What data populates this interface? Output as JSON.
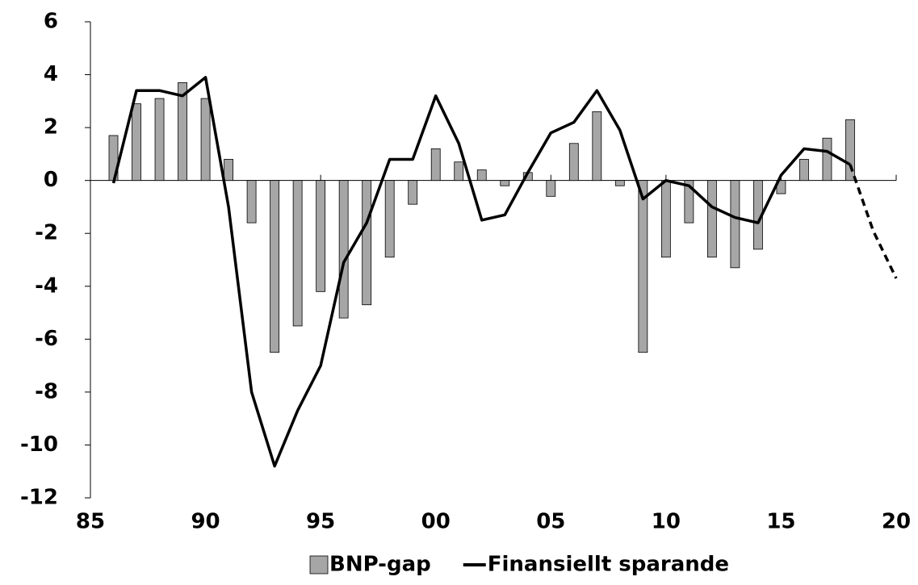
{
  "chart_data": {
    "type": "bar-line",
    "x": [
      1986,
      1987,
      1988,
      1989,
      1990,
      1991,
      1992,
      1993,
      1994,
      1995,
      1996,
      1997,
      1998,
      1999,
      2000,
      2001,
      2002,
      2003,
      2004,
      2005,
      2006,
      2007,
      2008,
      2009,
      2010,
      2011,
      2012,
      2013,
      2014,
      2015,
      2016,
      2017,
      2018,
      2019,
      2020
    ],
    "series": [
      {
        "name": "BNP-gap",
        "type": "bar",
        "color": "#a6a6a6",
        "values": [
          1.7,
          2.9,
          3.1,
          3.7,
          3.1,
          0.8,
          -1.6,
          -6.5,
          -5.5,
          -4.2,
          -5.2,
          -4.7,
          -2.9,
          -0.9,
          1.2,
          0.7,
          0.4,
          -0.2,
          0.3,
          -0.6,
          1.4,
          2.6,
          -0.2,
          -6.5,
          -2.9,
          -1.6,
          -2.9,
          -3.3,
          -2.6,
          -0.5,
          0.8,
          1.6,
          2.3,
          null,
          null
        ]
      },
      {
        "name": "Finansiellt sparande",
        "type": "line",
        "color": "#000000",
        "dashed_from_x": 2018,
        "values": [
          -0.1,
          3.4,
          3.4,
          3.2,
          3.9,
          -1.0,
          -8.0,
          -10.8,
          -8.7,
          -7.0,
          -3.1,
          -1.6,
          0.8,
          0.8,
          3.2,
          1.4,
          -1.5,
          -1.3,
          0.3,
          1.8,
          2.2,
          3.4,
          1.9,
          -0.7,
          0.0,
          -0.2,
          -1.0,
          -1.4,
          -1.6,
          0.2,
          1.2,
          1.1,
          0.6,
          -1.9,
          -3.7
        ]
      }
    ],
    "xlim": [
      1985,
      2020
    ],
    "xticks": [
      {
        "value": 1985,
        "label": "85"
      },
      {
        "value": 1990,
        "label": "90"
      },
      {
        "value": 1995,
        "label": "95"
      },
      {
        "value": 2000,
        "label": "00"
      },
      {
        "value": 2005,
        "label": "05"
      },
      {
        "value": 2010,
        "label": "10"
      },
      {
        "value": 2015,
        "label": "15"
      },
      {
        "value": 2020,
        "label": "20"
      }
    ],
    "ylim": [
      -12,
      6
    ],
    "yticks": [
      -12,
      -10,
      -8,
      -6,
      -4,
      -2,
      0,
      2,
      4,
      6
    ],
    "grid": false
  }
}
